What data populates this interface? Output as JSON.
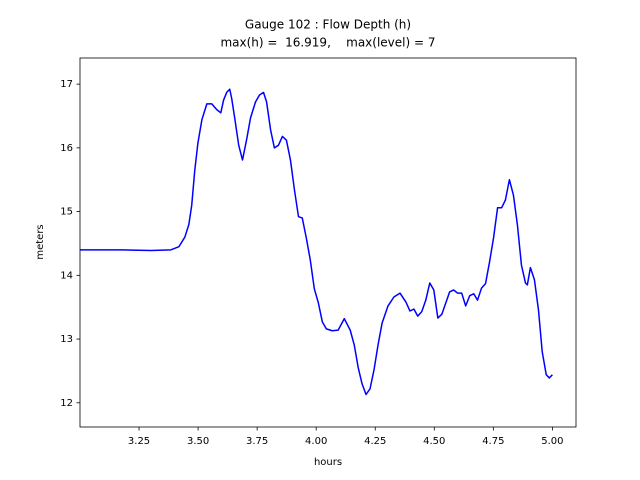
{
  "chart_data": {
    "type": "line",
    "title": "Gauge 102 : Flow Depth (h)",
    "subtitle": "max(h) =  16.919,    max(level) = 7",
    "x_label": "hours",
    "y_label": "meters",
    "x": [
      3.0,
      3.174,
      3.301,
      3.385,
      3.419,
      3.444,
      3.461,
      3.473,
      3.486,
      3.499,
      3.516,
      3.537,
      3.558,
      3.579,
      3.596,
      3.608,
      3.621,
      3.634,
      3.642,
      3.655,
      3.672,
      3.688,
      3.705,
      3.722,
      3.743,
      3.76,
      3.777,
      3.79,
      3.807,
      3.823,
      3.84,
      3.857,
      3.874,
      3.891,
      3.908,
      3.925,
      3.941,
      3.958,
      3.975,
      3.992,
      4.009,
      4.026,
      4.043,
      4.068,
      4.093,
      4.119,
      4.144,
      4.161,
      4.178,
      4.194,
      4.211,
      4.228,
      4.245,
      4.262,
      4.279,
      4.304,
      4.329,
      4.355,
      4.38,
      4.397,
      4.414,
      4.43,
      4.447,
      4.464,
      4.481,
      4.498,
      4.515,
      4.532,
      4.549,
      4.565,
      4.582,
      4.599,
      4.616,
      4.633,
      4.65,
      4.667,
      4.683,
      4.7,
      4.717,
      4.734,
      4.751,
      4.768,
      4.785,
      4.801,
      4.818,
      4.835,
      4.852,
      4.869,
      4.886,
      4.894,
      4.907,
      4.924,
      4.941,
      4.957,
      4.974,
      4.987,
      5.0
    ],
    "series": [
      {
        "name": "h",
        "color": "#0000ff",
        "values": [
          14.4,
          14.4,
          14.39,
          14.4,
          14.45,
          14.6,
          14.8,
          15.1,
          15.65,
          16.07,
          16.44,
          16.69,
          16.69,
          16.6,
          16.55,
          16.75,
          16.87,
          16.92,
          16.78,
          16.47,
          16.04,
          15.81,
          16.12,
          16.47,
          16.72,
          16.83,
          16.87,
          16.72,
          16.28,
          16.0,
          16.04,
          16.18,
          16.12,
          15.81,
          15.34,
          14.92,
          14.9,
          14.59,
          14.24,
          13.79,
          13.57,
          13.27,
          13.16,
          13.13,
          13.14,
          13.32,
          13.14,
          12.91,
          12.55,
          12.3,
          12.13,
          12.22,
          12.52,
          12.91,
          13.25,
          13.52,
          13.66,
          13.72,
          13.58,
          13.44,
          13.47,
          13.36,
          13.43,
          13.61,
          13.88,
          13.77,
          13.33,
          13.39,
          13.57,
          13.74,
          13.77,
          13.72,
          13.72,
          13.52,
          13.68,
          13.71,
          13.61,
          13.8,
          13.87,
          14.21,
          14.59,
          15.06,
          15.06,
          15.18,
          15.5,
          15.26,
          14.79,
          14.16,
          13.88,
          13.85,
          14.12,
          13.93,
          13.46,
          12.8,
          12.44,
          12.39,
          12.44
        ]
      }
    ],
    "xlim": [
      3.0,
      5.1
    ],
    "ylim": [
      11.62,
      17.41
    ],
    "xticks": [
      {
        "value": 3.25,
        "label": "3.25"
      },
      {
        "value": 3.5,
        "label": "3.50"
      },
      {
        "value": 3.75,
        "label": "3.75"
      },
      {
        "value": 4.0,
        "label": "4.00"
      },
      {
        "value": 4.25,
        "label": "4.25"
      },
      {
        "value": 4.5,
        "label": "4.50"
      },
      {
        "value": 4.75,
        "label": "4.75"
      },
      {
        "value": 5.0,
        "label": "5.00"
      }
    ],
    "yticks": [
      12,
      13,
      14,
      15,
      16,
      17
    ],
    "grid": false
  }
}
